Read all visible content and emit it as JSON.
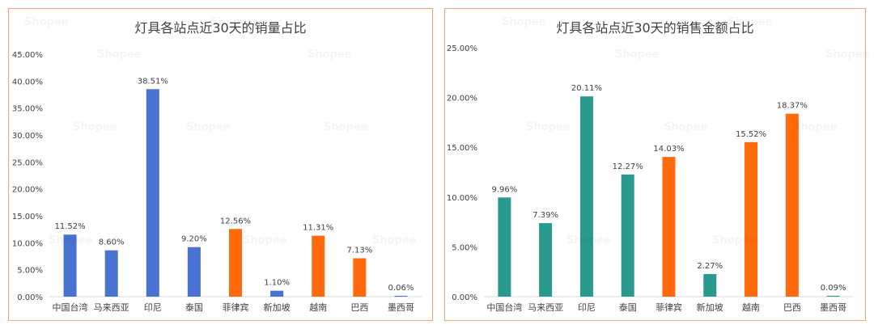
{
  "colors": {
    "blue": "#4a72d1",
    "orange": "#ff6a0e",
    "teal": "#2a9a8f",
    "axis": "#d9d9d9",
    "text": "#404040",
    "border": "#f0a47a"
  },
  "watermark": {
    "logo_text": "Shopee"
  },
  "chart_data": [
    {
      "type": "bar",
      "title": "灯具各站点近30天的销量占比",
      "xlabel": "",
      "ylabel": "",
      "ylim": [
        0,
        45
      ],
      "y_ticks": [
        "0.00%",
        "5.00%",
        "10.00%",
        "15.00%",
        "20.00%",
        "25.00%",
        "30.00%",
        "35.00%",
        "40.00%",
        "45.00%"
      ],
      "categories": [
        "中国台湾",
        "马来西亚",
        "印尼",
        "泰国",
        "菲律宾",
        "新加坡",
        "越南",
        "巴西",
        "墨西哥"
      ],
      "values": [
        11.52,
        8.6,
        38.51,
        9.2,
        12.56,
        1.1,
        11.31,
        7.13,
        0.06
      ],
      "labels": [
        "11.52%",
        "8.60%",
        "38.51%",
        "9.20%",
        "12.56%",
        "1.10%",
        "11.31%",
        "7.13%",
        "0.06%"
      ],
      "bar_colors": [
        "#4a72d1",
        "#4a72d1",
        "#4a72d1",
        "#4a72d1",
        "#ff6a0e",
        "#4a72d1",
        "#ff6a0e",
        "#ff6a0e",
        "#4a72d1"
      ]
    },
    {
      "type": "bar",
      "title": "灯具各站点近30天的销售金额占比",
      "xlabel": "",
      "ylabel": "",
      "ylim": [
        0,
        25
      ],
      "y_ticks": [
        "0.00%",
        "5.00%",
        "10.00%",
        "15.00%",
        "20.00%",
        "25.00%"
      ],
      "categories": [
        "中国台湾",
        "马来西亚",
        "印尼",
        "泰国",
        "菲律宾",
        "新加坡",
        "越南",
        "巴西",
        "墨西哥"
      ],
      "values": [
        9.96,
        7.39,
        20.11,
        12.27,
        14.03,
        2.27,
        15.52,
        18.37,
        0.09
      ],
      "labels": [
        "9.96%",
        "7.39%",
        "20.11%",
        "12.27%",
        "14.03%",
        "2.27%",
        "15.52%",
        "18.37%",
        "0.09%"
      ],
      "bar_colors": [
        "#2a9a8f",
        "#2a9a8f",
        "#2a9a8f",
        "#2a9a8f",
        "#ff6a0e",
        "#2a9a8f",
        "#ff6a0e",
        "#ff6a0e",
        "#2a9a8f"
      ]
    }
  ]
}
